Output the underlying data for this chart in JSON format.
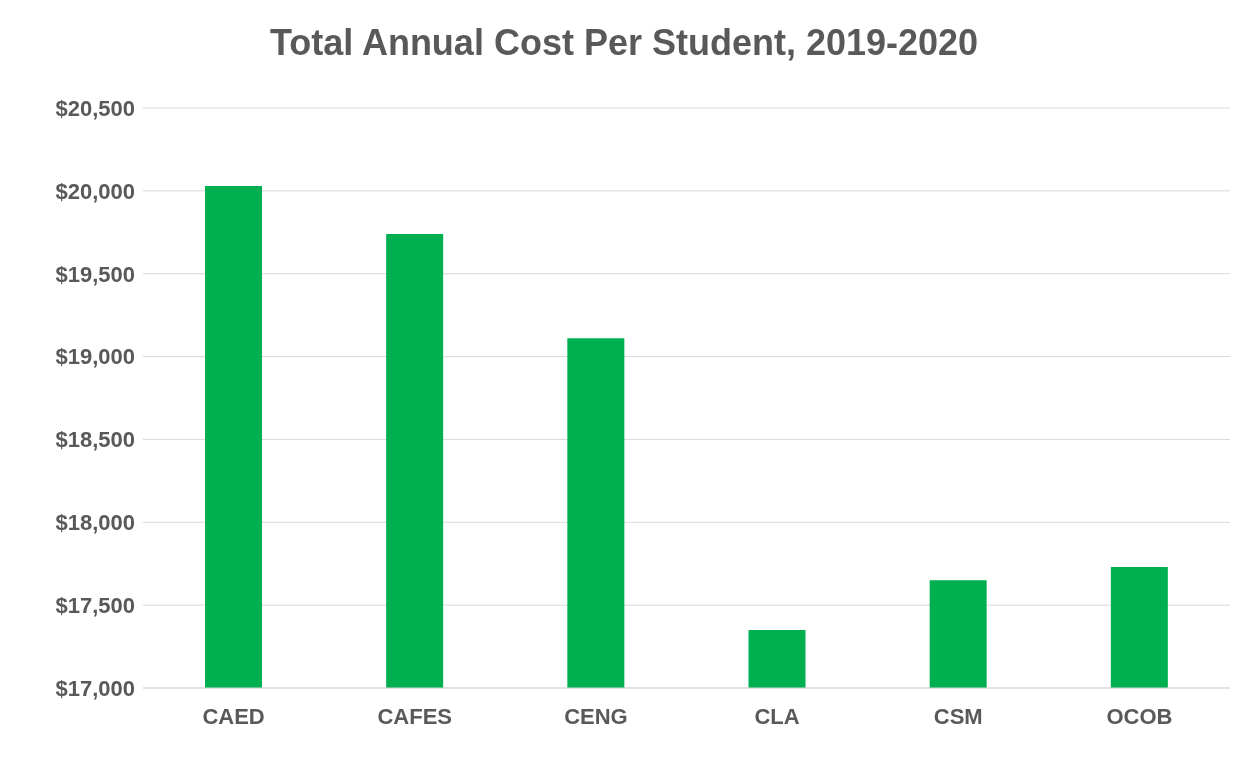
{
  "chart_data": {
    "type": "bar",
    "title": "Total Annual Cost Per Student, 2019-2020",
    "categories": [
      "CAED",
      "CAFES",
      "CENG",
      "CLA",
      "CSM",
      "OCOB"
    ],
    "values": [
      20030,
      19740,
      19110,
      17350,
      17650,
      17730
    ],
    "color": "#00b050",
    "ylim": [
      17000,
      20500
    ],
    "yticks": [
      {
        "value": 17000,
        "label": "$17,000"
      },
      {
        "value": 17500,
        "label": "$17,500"
      },
      {
        "value": 18000,
        "label": "$18,000"
      },
      {
        "value": 18500,
        "label": "$18,500"
      },
      {
        "value": 19000,
        "label": "$19,000"
      },
      {
        "value": 19500,
        "label": "$19,500"
      },
      {
        "value": 20000,
        "label": "$20,000"
      },
      {
        "value": 20500,
        "label": "$20,500"
      }
    ],
    "grid": "y"
  }
}
